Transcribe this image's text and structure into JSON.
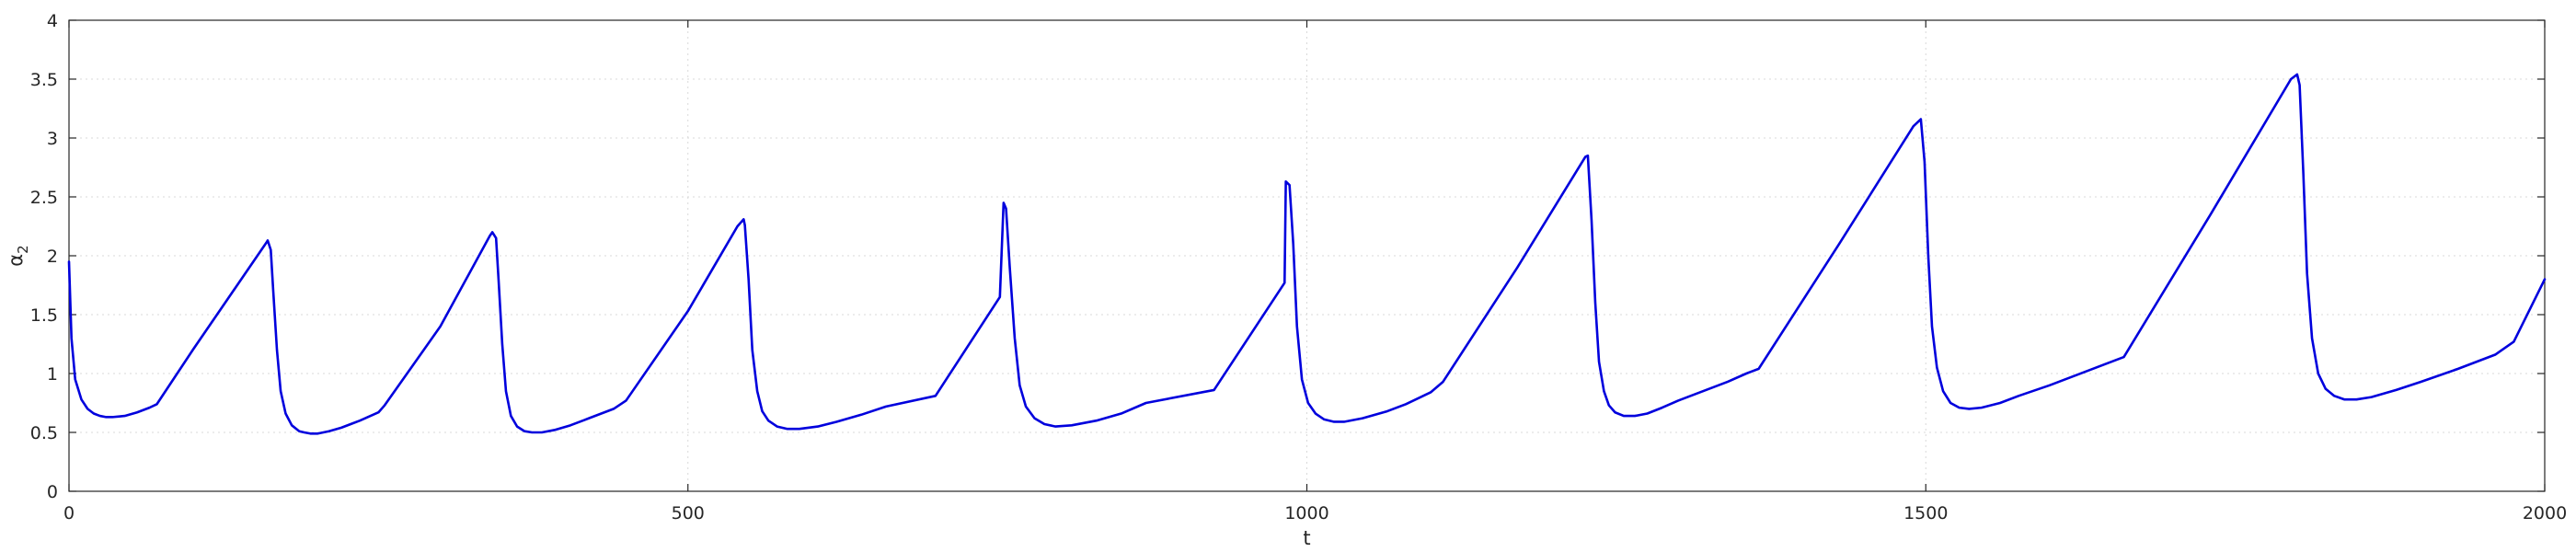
{
  "chart_data": {
    "type": "line",
    "title": "",
    "xlabel": "t",
    "ylabel_main": "α",
    "ylabel_sub": "2",
    "xlim": [
      0,
      2000
    ],
    "ylim": [
      0,
      4
    ],
    "xticks": [
      0,
      500,
      1000,
      1500,
      2000
    ],
    "yticks": [
      0,
      0.5,
      1,
      1.5,
      2,
      2.5,
      3,
      3.5,
      4
    ],
    "xtick_labels": [
      "0",
      "500",
      "1000",
      "1500",
      "2000"
    ],
    "ytick_labels": [
      "0",
      "0.5",
      "1",
      "1.5",
      "2",
      "2.5",
      "3",
      "3.5",
      "4"
    ],
    "grid": true,
    "line_color": "#0000dd",
    "series": [
      {
        "x": [
          0,
          2,
          5,
          10,
          15,
          20,
          25,
          30,
          35,
          45,
          55,
          65,
          71,
          100,
          130,
          160,
          160.5,
          163,
          165,
          168,
          171,
          175,
          180,
          186,
          190,
          195,
          201,
          210,
          220,
          235,
          250,
          255,
          300,
          340,
          342,
          345,
          347,
          350,
          353,
          357,
          362,
          368,
          374,
          382,
          392,
          405,
          420,
          440,
          450,
          500,
          540,
          545,
          546,
          549,
          552,
          556,
          560,
          565,
          572,
          580,
          590,
          605,
          620,
          640,
          660,
          700,
          752,
          755,
          757,
          760,
          764,
          768,
          773,
          780,
          788,
          797,
          810,
          830,
          850,
          870,
          925,
          982,
          983,
          986,
          989,
          992,
          996,
          1001,
          1007,
          1014,
          1022,
          1030,
          1045,
          1065,
          1080,
          1100,
          1110,
          1170,
          1225,
          1227,
          1230,
          1233,
          1236,
          1240,
          1244,
          1249,
          1256,
          1265,
          1275,
          1287,
          1300,
          1320,
          1340,
          1355,
          1365,
          1430,
          1490,
          1496,
          1499,
          1502,
          1505,
          1509,
          1514,
          1520,
          1527,
          1535,
          1545,
          1560,
          1575,
          1600,
          1630,
          1650,
          1660,
          1730,
          1795,
          1800,
          1802,
          1805,
          1808,
          1812,
          1817,
          1823,
          1830,
          1838,
          1848,
          1860,
          1880,
          1900,
          1930,
          1960,
          1975,
          2000
        ],
        "y": [
          1.95,
          1.3,
          0.95,
          0.78,
          0.7,
          0.66,
          0.64,
          0.63,
          0.63,
          0.64,
          0.67,
          0.71,
          0.74,
          1.2,
          1.66,
          2.12,
          2.13,
          2.05,
          1.7,
          1.2,
          0.85,
          0.66,
          0.56,
          0.51,
          0.5,
          0.49,
          0.49,
          0.51,
          0.54,
          0.6,
          0.67,
          0.73,
          1.4,
          2.17,
          2.2,
          2.15,
          1.8,
          1.25,
          0.85,
          0.64,
          0.55,
          0.51,
          0.5,
          0.5,
          0.52,
          0.56,
          0.62,
          0.7,
          0.77,
          1.53,
          2.25,
          2.31,
          2.26,
          1.8,
          1.2,
          0.85,
          0.68,
          0.6,
          0.55,
          0.53,
          0.53,
          0.55,
          0.59,
          0.65,
          0.72,
          0.81,
          1.65,
          2.45,
          2.4,
          1.9,
          1.3,
          0.9,
          0.72,
          0.62,
          0.57,
          0.55,
          0.56,
          0.6,
          0.66,
          0.75,
          0.86,
          1.77,
          2.63,
          2.6,
          2.1,
          1.4,
          0.95,
          0.75,
          0.66,
          0.61,
          0.59,
          0.59,
          0.62,
          0.68,
          0.74,
          0.84,
          0.93,
          1.9,
          2.84,
          2.85,
          2.3,
          1.6,
          1.1,
          0.85,
          0.73,
          0.67,
          0.64,
          0.64,
          0.66,
          0.71,
          0.77,
          0.85,
          0.93,
          1.0,
          1.04,
          2.1,
          3.1,
          3.16,
          2.8,
          2.0,
          1.4,
          1.05,
          0.85,
          0.75,
          0.71,
          0.7,
          0.71,
          0.75,
          0.81,
          0.9,
          1.02,
          1.1,
          1.14,
          2.35,
          3.5,
          3.54,
          3.45,
          2.7,
          1.85,
          1.3,
          1.0,
          0.87,
          0.81,
          0.78,
          0.78,
          0.8,
          0.86,
          0.93,
          1.04,
          1.16,
          1.27,
          1.8
        ]
      }
    ]
  }
}
